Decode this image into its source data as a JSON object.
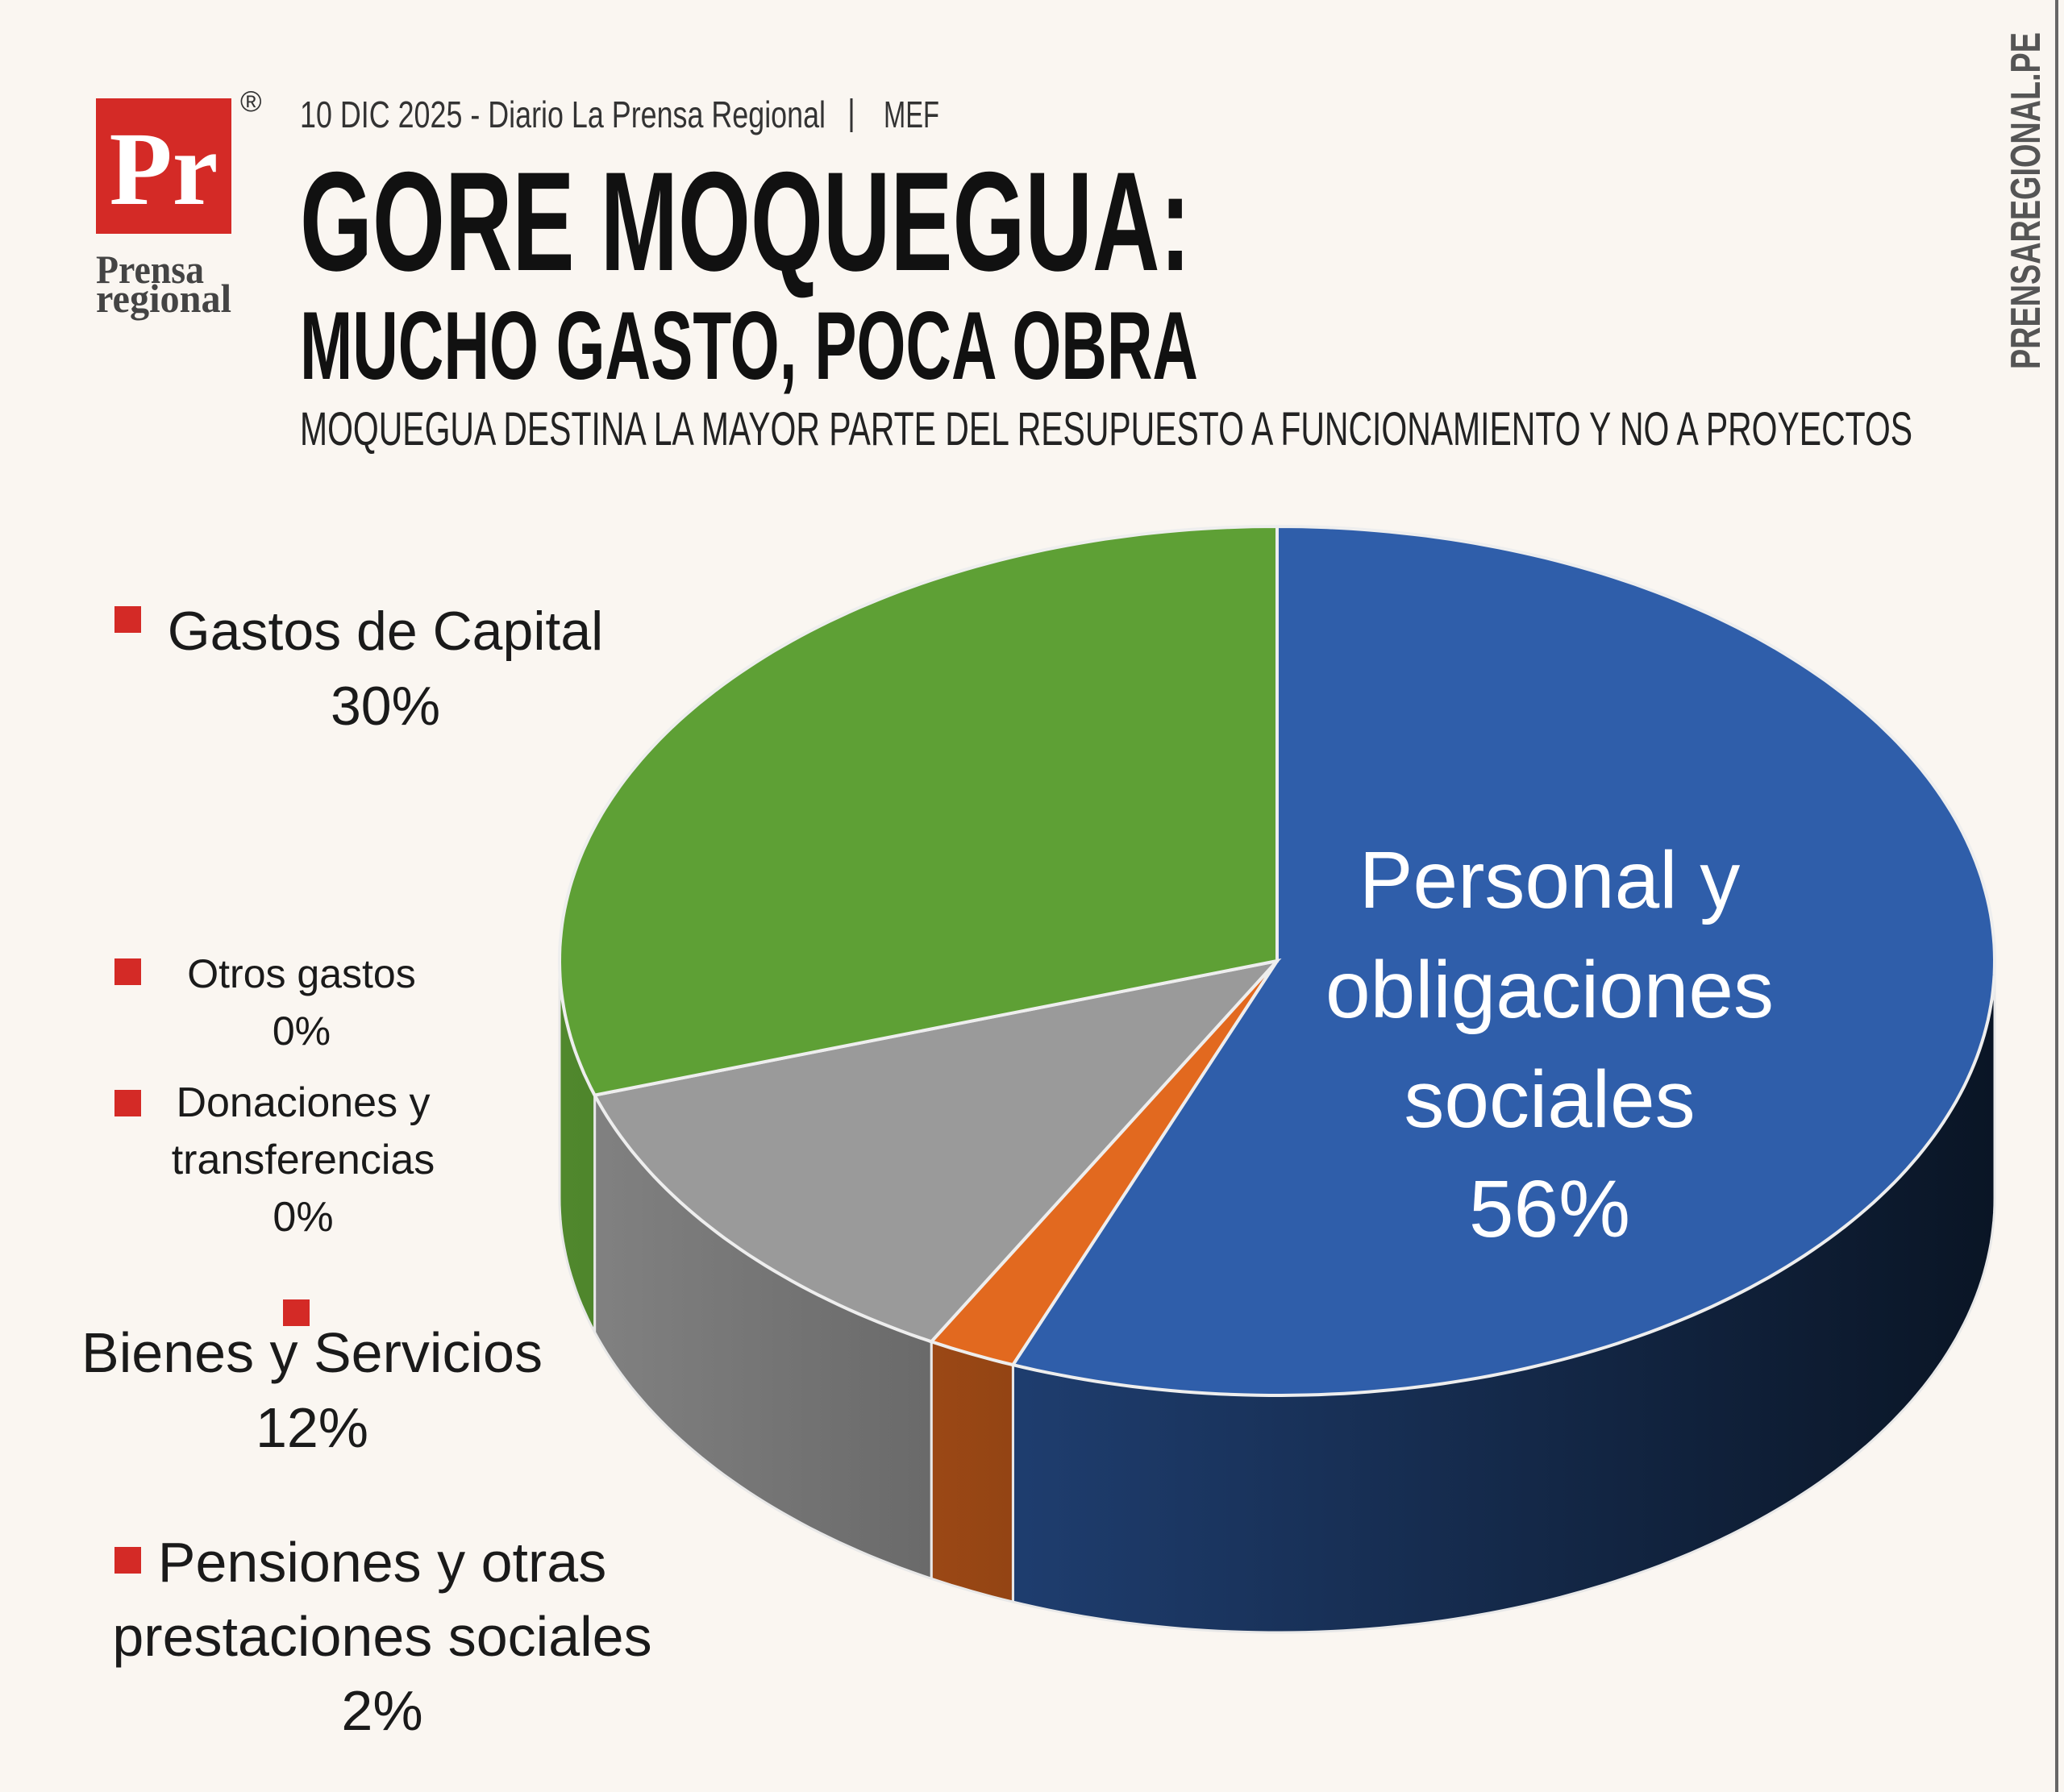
{
  "brand": {
    "logo": "Pr",
    "registered": "®",
    "name_line1": "Prensa",
    "name_line2": "regional",
    "website": "PRENSAREGIONAL.PE"
  },
  "chart_data": {
    "type": "pie",
    "source": "10 DIC 2025 - Diario La Prensa Regional",
    "source_org": "MEF",
    "title": "GORE MOQUEGUA:",
    "subtitle": "MUCHO GASTO, POCA OBRA",
    "description": "MOQUEGUA DESTINA LA MAYOR PARTE DEL RESUPUESTO A FUNCIONAMIENTO Y NO A PROYECTOS",
    "categories": [
      "Personal y obligaciones sociales",
      "Pensiones y otras prestaciones sociales",
      "Donaciones y transferencias",
      "Otros gastos",
      "Bienes y Servicios",
      "Gastos de Capital"
    ],
    "values": [
      56,
      2,
      0,
      0,
      12,
      30
    ],
    "value_labels": [
      "56%",
      "2%",
      "0%",
      "0%",
      "12%",
      "30%"
    ],
    "colors": [
      "#2f5eaa",
      "#e2691f",
      "#ffc000",
      "#264478",
      "#9a9a9a",
      "#5ea035"
    ]
  }
}
